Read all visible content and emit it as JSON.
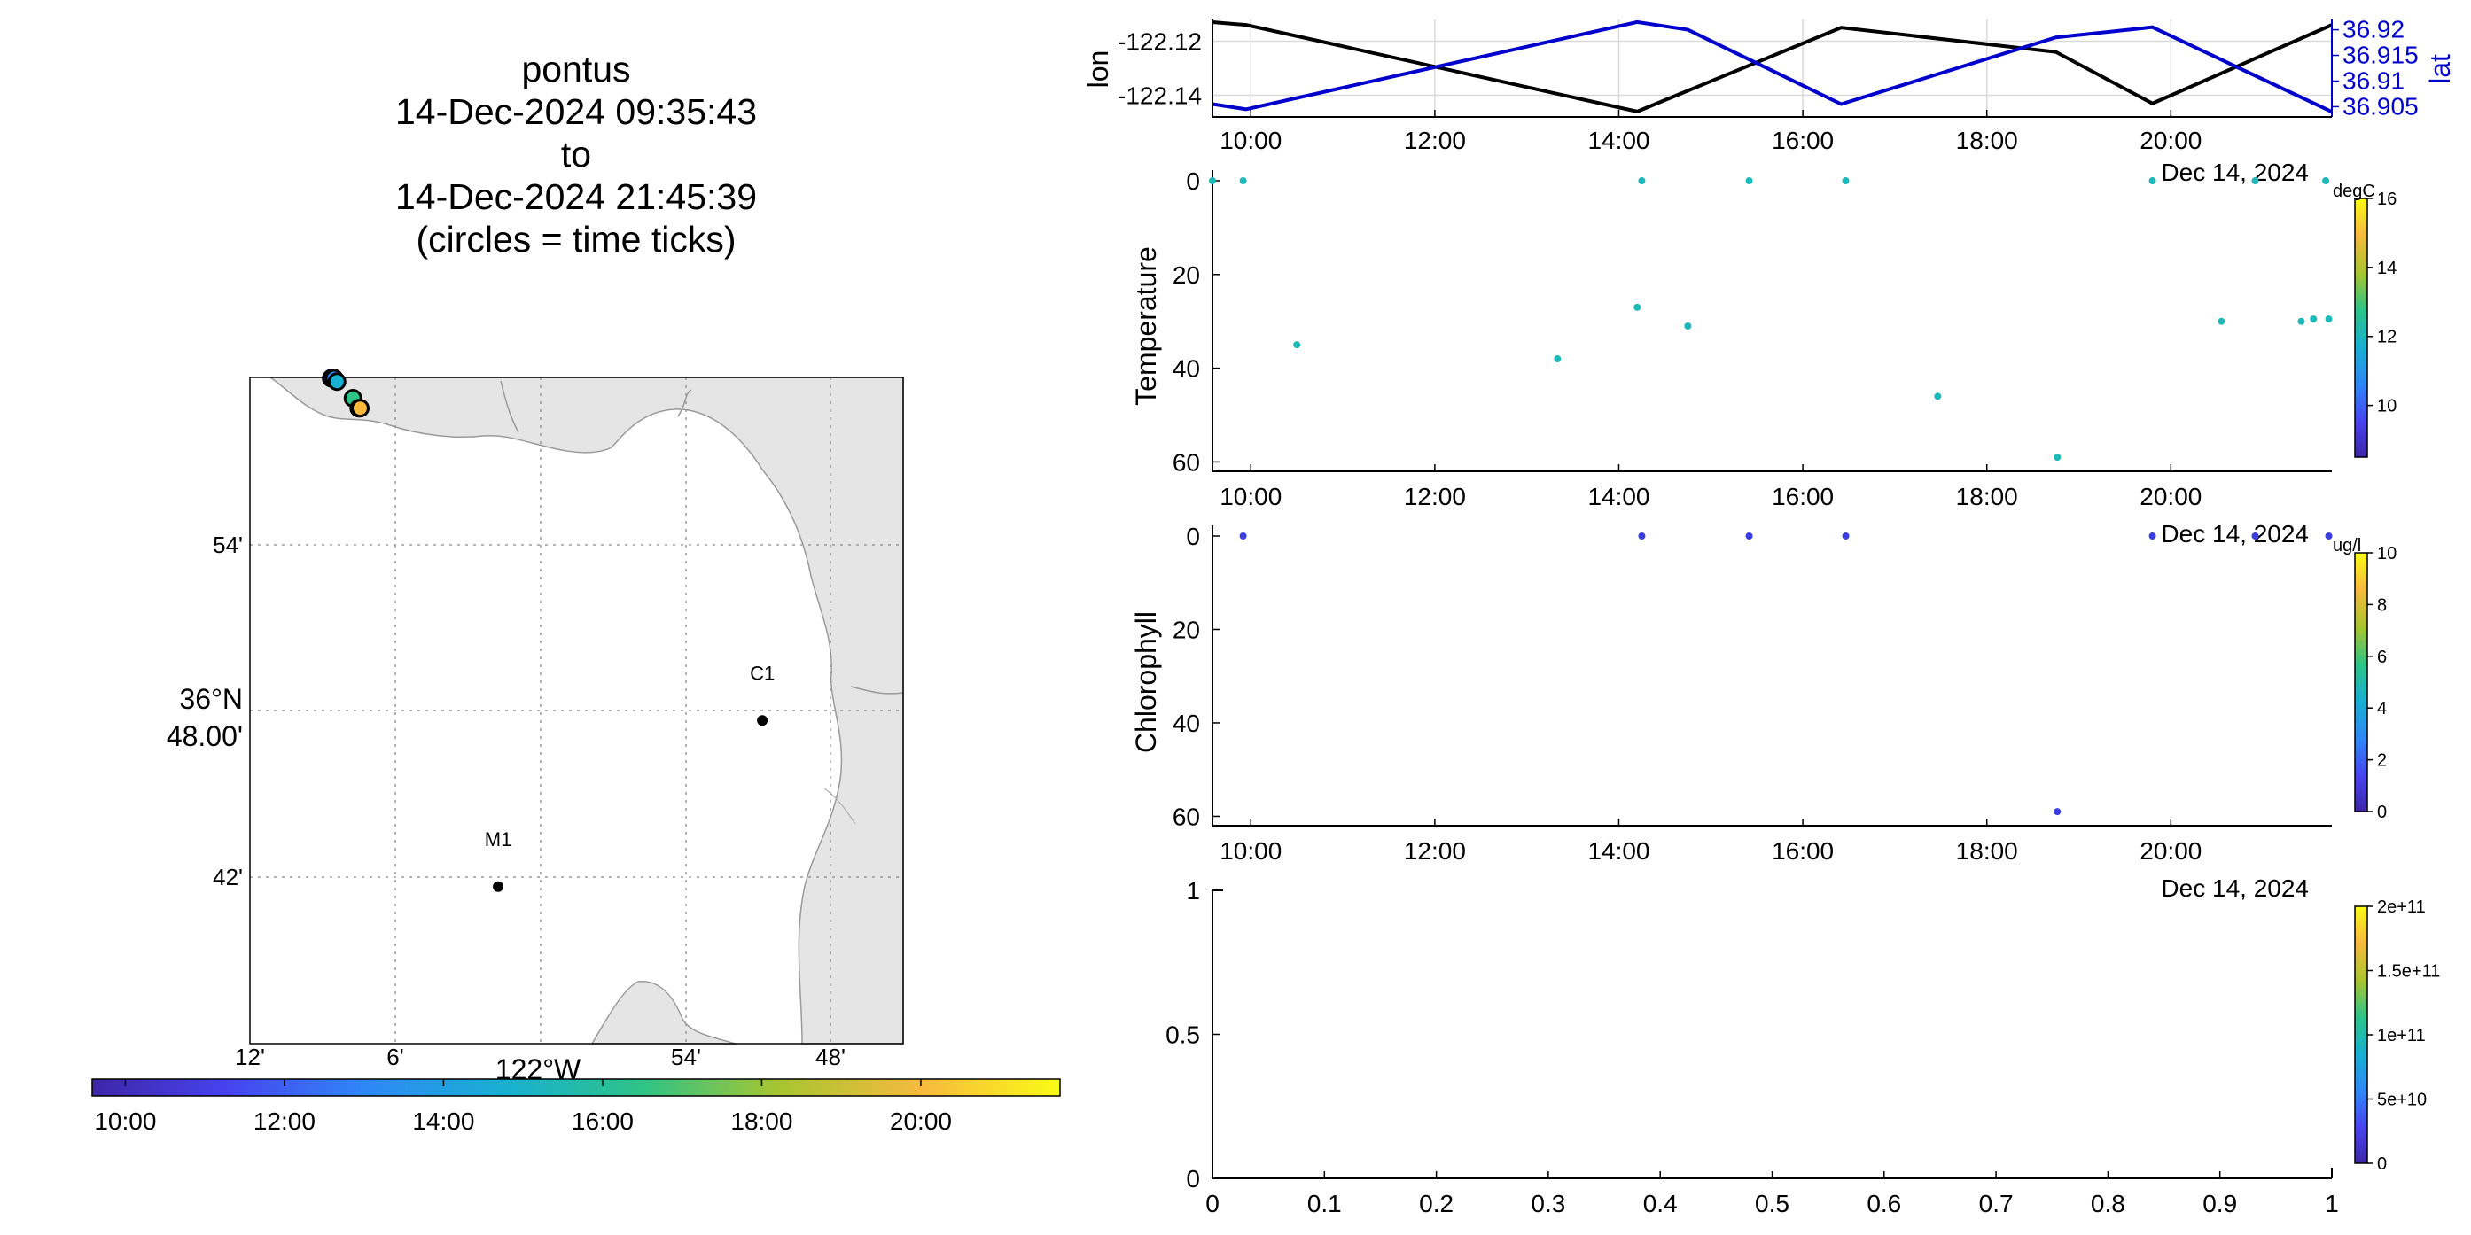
{
  "title": {
    "platform": "pontus",
    "start": "14-Dec-2024 09:35:43",
    "to": "to",
    "end": "14-Dec-2024 21:45:39",
    "note": "(circles = time ticks)"
  },
  "map": {
    "lon_ticks": [
      "12'",
      "6'",
      "54'",
      "48'"
    ],
    "lat_ticks": [
      "54'",
      "48.00'",
      "42'"
    ],
    "lat_label": "36°N",
    "lon_label": "122°W",
    "stations": [
      {
        "name": "C1",
        "lon": -121.847,
        "lat": 36.797
      },
      {
        "name": "M1",
        "lon": -122.029,
        "lat": 36.747
      }
    ],
    "track_circles": [
      {
        "lon": -122.144,
        "lat": 36.9
      },
      {
        "lon": -122.142,
        "lat": 36.9
      },
      {
        "lon": -122.14,
        "lat": 36.899
      },
      {
        "lon": -122.129,
        "lat": 36.894
      },
      {
        "lon": -122.125,
        "lat": 36.891
      },
      {
        "lon": -122.124,
        "lat": 36.891
      }
    ],
    "colorbar": {
      "ticks": [
        "10:00",
        "12:00",
        "14:00",
        "16:00",
        "18:00",
        "20:00"
      ],
      "colors": [
        "#3e26a8",
        "#4743f0",
        "#2e87f7",
        "#18b1d1",
        "#2ec486",
        "#a8c530",
        "#f8ba3d",
        "#f9fb15"
      ]
    }
  },
  "chart_data": [
    {
      "type": "line",
      "xlim": [
        "09:35",
        "21:45"
      ],
      "x_ticks": [
        "10:00",
        "12:00",
        "14:00",
        "16:00",
        "18:00",
        "20:00"
      ],
      "date_label": "Dec 14, 2024",
      "grid": true,
      "y_left": {
        "label": "lon",
        "ticks": [
          "-122.12",
          "-122.14"
        ],
        "lim": [
          -122.148,
          -122.112
        ]
      },
      "y_right": {
        "label": "lat",
        "ticks": [
          "36.92",
          "36.915",
          "36.91",
          "36.905"
        ],
        "lim": [
          36.903,
          36.922
        ]
      },
      "series": [
        {
          "name": "lon",
          "axis": "left",
          "color": "#000000",
          "x": [
            "09:35",
            "09:57",
            "14:12",
            "16:25",
            "18:45",
            "19:48",
            "21:45"
          ],
          "y": [
            -122.113,
            -122.114,
            -122.146,
            -122.115,
            -122.124,
            -122.143,
            -122.114
          ]
        },
        {
          "name": "lat",
          "axis": "right",
          "color": "#0000cc",
          "x": [
            "09:35",
            "09:57",
            "14:12",
            "14:45",
            "16:25",
            "18:45",
            "19:48",
            "21:45"
          ],
          "y": [
            36.9055,
            36.9045,
            36.9215,
            36.92,
            36.9055,
            36.9185,
            36.9205,
            36.904
          ]
        }
      ]
    },
    {
      "type": "scatter",
      "ylabel": "Temperature",
      "ylim": [
        0,
        62
      ],
      "y_ticks": [
        "0",
        "20",
        "40",
        "60"
      ],
      "x_ticks": [
        "10:00",
        "12:00",
        "14:00",
        "16:00",
        "18:00",
        "20:00"
      ],
      "date_label": "Dec 14, 2024",
      "colorbar": {
        "unit": "degC",
        "ticks": [
          "16",
          "14",
          "12",
          "10"
        ],
        "lim": [
          8.5,
          16
        ]
      },
      "points": [
        {
          "x": "09:35",
          "y": 0
        },
        {
          "x": "09:55",
          "y": 0
        },
        {
          "x": "10:30",
          "y": 35
        },
        {
          "x": "13:20",
          "y": 38
        },
        {
          "x": "14:12",
          "y": 27
        },
        {
          "x": "14:15",
          "y": 0
        },
        {
          "x": "14:45",
          "y": 31
        },
        {
          "x": "15:25",
          "y": 0
        },
        {
          "x": "16:28",
          "y": 0
        },
        {
          "x": "17:28",
          "y": 46
        },
        {
          "x": "18:46",
          "y": 59
        },
        {
          "x": "19:48",
          "y": 0
        },
        {
          "x": "20:33",
          "y": 30
        },
        {
          "x": "20:55",
          "y": 0
        },
        {
          "x": "21:25",
          "y": 30
        },
        {
          "x": "21:33",
          "y": 29.5
        },
        {
          "x": "21:41",
          "y": 0
        },
        {
          "x": "21:43",
          "y": 29.5
        }
      ],
      "point_color": "#1fb8b8"
    },
    {
      "type": "scatter",
      "ylabel": "Chlorophyll",
      "ylim": [
        0,
        62
      ],
      "y_ticks": [
        "0",
        "20",
        "40",
        "60"
      ],
      "x_ticks": [
        "10:00",
        "12:00",
        "14:00",
        "16:00",
        "18:00",
        "20:00"
      ],
      "date_label": "Dec 14, 2024",
      "colorbar": {
        "unit": "ug/l",
        "ticks": [
          "10",
          "8",
          "6",
          "4",
          "2",
          "0"
        ],
        "lim": [
          0,
          10
        ]
      },
      "points": [
        {
          "x": "09:55",
          "y": 0
        },
        {
          "x": "14:15",
          "y": 0
        },
        {
          "x": "15:25",
          "y": 0
        },
        {
          "x": "16:28",
          "y": 0
        },
        {
          "x": "18:46",
          "y": 59
        },
        {
          "x": "19:48",
          "y": 0
        },
        {
          "x": "20:55",
          "y": 0
        },
        {
          "x": "21:43",
          "y": 0
        }
      ],
      "point_color": "#3a3ee0"
    },
    {
      "type": "scatter",
      "xlim": [
        0,
        1
      ],
      "ylim": [
        0,
        1
      ],
      "x_ticks": [
        "0",
        "0.1",
        "0.2",
        "0.3",
        "0.4",
        "0.5",
        "0.6",
        "0.7",
        "0.8",
        "0.9",
        "1"
      ],
      "y_ticks": [
        "1",
        "0.5",
        "0"
      ],
      "colorbar": {
        "ticks": [
          "2e+11",
          "1.5e+11",
          "1e+11",
          "5e+10",
          "0"
        ],
        "lim": [
          0,
          200000000000.0
        ]
      },
      "points": []
    }
  ]
}
